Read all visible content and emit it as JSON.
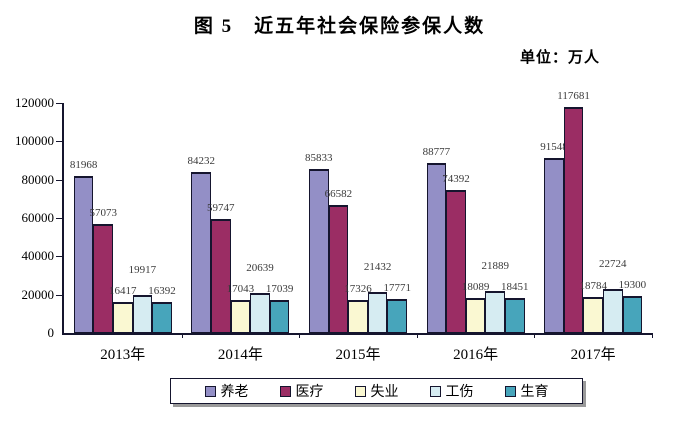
{
  "title": "图 5　近五年社会保险参保人数",
  "unit_label": "单位：万人",
  "chart_data": {
    "type": "bar",
    "title": "图 5　近五年社会保险参保人数",
    "unit": "万人",
    "categories": [
      "2013年",
      "2014年",
      "2015年",
      "2016年",
      "2017年"
    ],
    "series": [
      {
        "name": "养老",
        "color": "#938fc6",
        "values": [
          81968,
          84232,
          85833,
          88777,
          91548
        ]
      },
      {
        "name": "医疗",
        "color": "#9b2d64",
        "values": [
          57073,
          59747,
          66582,
          74392,
          117681
        ]
      },
      {
        "name": "失业",
        "color": "#faf8d2",
        "values": [
          16417,
          17043,
          17326,
          18089,
          18784
        ]
      },
      {
        "name": "工伤",
        "color": "#d6ecf2",
        "values": [
          19917,
          20639,
          21432,
          21889,
          22724
        ]
      },
      {
        "name": "生育",
        "color": "#47a5bb",
        "values": [
          16392,
          17039,
          17771,
          18451,
          19300
        ]
      }
    ],
    "ylim": [
      0,
      120000
    ],
    "ytick_interval": 20000,
    "yticks": [
      "0",
      "20000",
      "40000",
      "60000",
      "80000",
      "100000",
      "120000"
    ],
    "xlabel": "",
    "ylabel": "",
    "grid": false,
    "bar_value_labels": true,
    "legend_position": "bottom",
    "axis_color": "#15152e",
    "label_color": "#3a3a3a"
  }
}
